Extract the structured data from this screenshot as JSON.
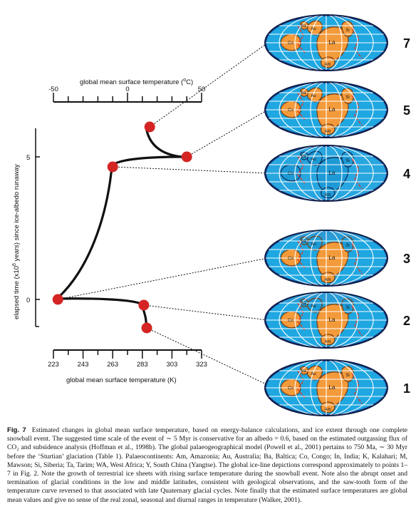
{
  "figure": {
    "top_axis": {
      "label_main": "global mean surface temperature (",
      "label_sup": "o",
      "label_end": "C)",
      "ticks": [
        "-50",
        "0",
        "50"
      ],
      "range": [
        -50,
        50
      ]
    },
    "bottom_axis": {
      "label": "global mean surface temperature (K)",
      "ticks": [
        "223",
        "243",
        "263",
        "283",
        "303",
        "323"
      ],
      "range": [
        223,
        323
      ]
    },
    "y_axis": {
      "label_main": "elapsed time (x10",
      "label_sup": "6",
      "label_end": " years) since ice-albedo runaway",
      "ticks": [
        "0",
        "5"
      ]
    },
    "points": [
      {
        "id": "1",
        "label": "1",
        "temperature_K": 286,
        "time_myr": -1.0
      },
      {
        "id": "2",
        "label": "2",
        "temperature_K": 284,
        "time_myr": -0.2
      },
      {
        "id": "3",
        "label": "3",
        "temperature_K": 226,
        "time_myr": 0.0
      },
      {
        "id": "4",
        "label": "4",
        "temperature_K": 263,
        "time_myr": 4.65
      },
      {
        "id": "5",
        "label": "5",
        "temperature_K": 313,
        "time_myr": 5.0
      },
      {
        "id": "7",
        "label": "7",
        "temperature_K": 288,
        "time_myr": 6.05
      }
    ],
    "globes": [
      {
        "number": "7",
        "land": "orange",
        "labels": [
          "Au",
          "Si",
          "La",
          "Co",
          "Am",
          "Ba"
        ]
      },
      {
        "number": "5",
        "land": "orange",
        "labels": [
          "Au",
          "Si",
          "La",
          "Co",
          "Am",
          "Ba"
        ]
      },
      {
        "number": "4",
        "land": "ice",
        "labels": [
          "Au",
          "Si",
          "La",
          "Co",
          "Am",
          "Ba"
        ]
      },
      {
        "number": "3",
        "land": "mixed",
        "labels": [
          "Au",
          "Si",
          "La",
          "Co",
          "Am",
          "Ba"
        ]
      },
      {
        "number": "2",
        "land": "mixed",
        "labels": [
          "Au",
          "Si",
          "La",
          "Co",
          "Am",
          "Ba"
        ]
      },
      {
        "number": "1",
        "land": "orange",
        "labels": [
          "Au",
          "Si",
          "La",
          "Co",
          "Am",
          "Ba"
        ]
      }
    ],
    "colors": {
      "ocean": "#1ea7e1",
      "land": "#f39a3a",
      "ice": "#2fb0e4",
      "point": "#d42424",
      "ridge": "#e03a2a"
    }
  },
  "caption": {
    "label": "Fig. 7",
    "text": "Estimated changes in global mean surface temperature, based on energy-balance calculations, and ice extent through one complete snowball event. The suggested time scale of the event of ∼ 5 Myr is conservative for an albedo = 0.6, based on the estimated outgassing flux of CO₂ and subsidence analysis (Hoffman et al., 1998b). The global palaeogeographical model (Powell et al., 2001) pertains to 750 Ma, ∼ 30 Myr before the ‘Sturtian’ glaciation (Table 1). Palaeocontinents: Am, Amazonia; Au, Australia; Ba, Baltica; Co, Congo; In, India; K, Kalahari; M, Mawson; Si, Siberia; Ta, Tarim; WA, West Africa; Y, South China (Yangtse). The global ice-line depictions correspond approximately to points 1–7 in Fig. 2. Note the growth of terrestrial ice sheets with rising surface temperature during the snowball event. Note also the abrupt onset and termination of glacial conditions in the low and middle latitudes, consistent with geological observations, and the saw-tooth form of the temperature curve reversed to that associated with late Quaternary glacial cycles. Note finally that the estimated surface temperatures are global mean values and give no sense of the real zonal, seasonal and diurnal ranges in temperature (Walker, 2001)."
  }
}
